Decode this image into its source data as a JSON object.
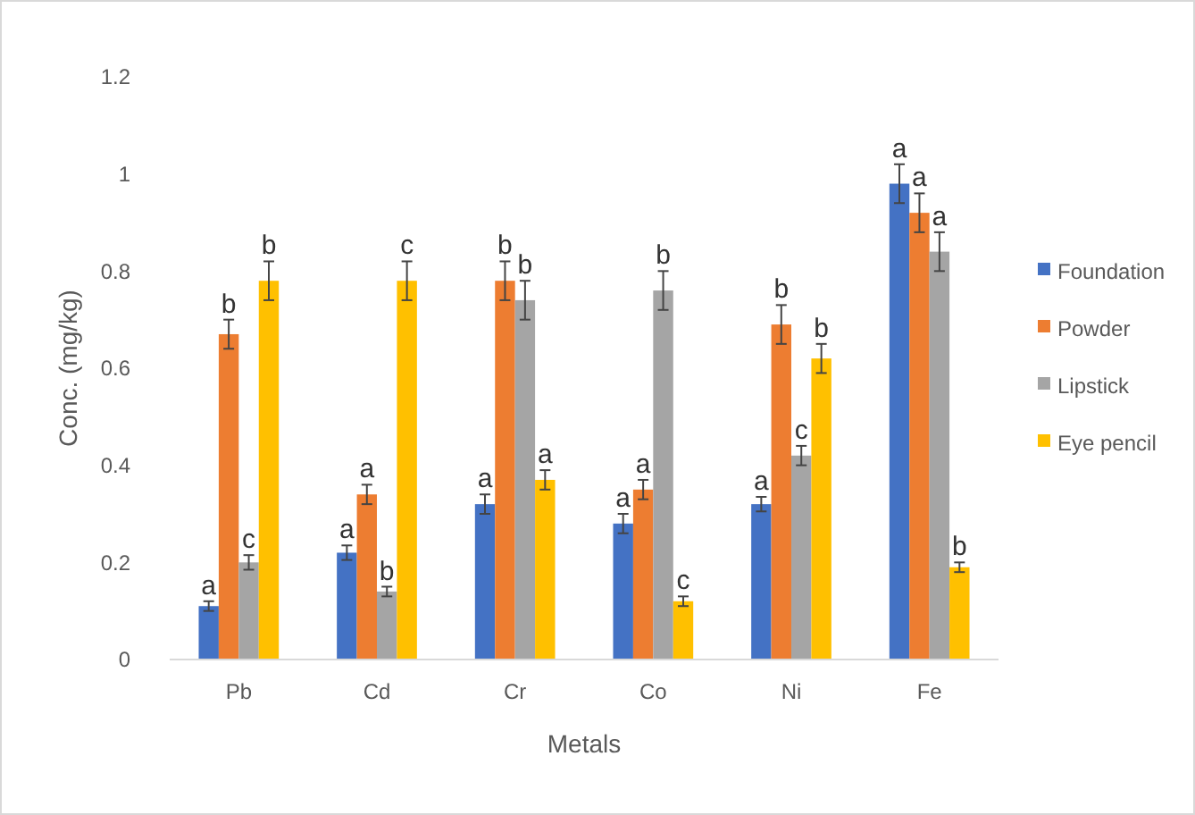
{
  "chart_data": {
    "type": "bar",
    "xlabel": "Metals",
    "ylabel": "Conc. (mg/kg)",
    "categories": [
      "Pb",
      "Cd",
      "Cr",
      "Co",
      "Ni",
      "Fe"
    ],
    "ylim": [
      0,
      1.2
    ],
    "yticks": [
      0,
      0.2,
      0.4,
      0.6,
      0.8,
      1,
      1.2
    ],
    "grid": false,
    "legend": "right",
    "series": [
      {
        "name": "Foundation",
        "color": "#4472c4",
        "values": [
          0.11,
          0.22,
          0.32,
          0.28,
          0.32,
          0.98
        ],
        "errors": [
          0.01,
          0.015,
          0.02,
          0.02,
          0.015,
          0.04
        ],
        "value_labels": [
          "a",
          "a",
          "a",
          "a",
          "a",
          "a"
        ]
      },
      {
        "name": "Powder",
        "color": "#ed7d31",
        "values": [
          0.67,
          0.34,
          0.78,
          0.35,
          0.69,
          0.92
        ],
        "errors": [
          0.03,
          0.02,
          0.04,
          0.02,
          0.04,
          0.04
        ],
        "value_labels": [
          "b",
          "a",
          "b",
          "a",
          "b",
          "a"
        ]
      },
      {
        "name": "Lipstick",
        "color": "#a5a5a5",
        "values": [
          0.2,
          0.14,
          0.74,
          0.76,
          0.42,
          0.84
        ],
        "errors": [
          0.015,
          0.01,
          0.04,
          0.04,
          0.02,
          0.04
        ],
        "value_labels": [
          "c",
          "b",
          "b",
          "b",
          "c",
          "a"
        ]
      },
      {
        "name": "Eye pencil",
        "color": "#ffc000",
        "values": [
          0.78,
          0.78,
          0.37,
          0.12,
          0.62,
          0.19
        ],
        "errors": [
          0.04,
          0.04,
          0.02,
          0.01,
          0.03,
          0.01
        ],
        "value_labels": [
          "b",
          "c",
          "a",
          "c",
          "b",
          "b"
        ]
      }
    ]
  }
}
